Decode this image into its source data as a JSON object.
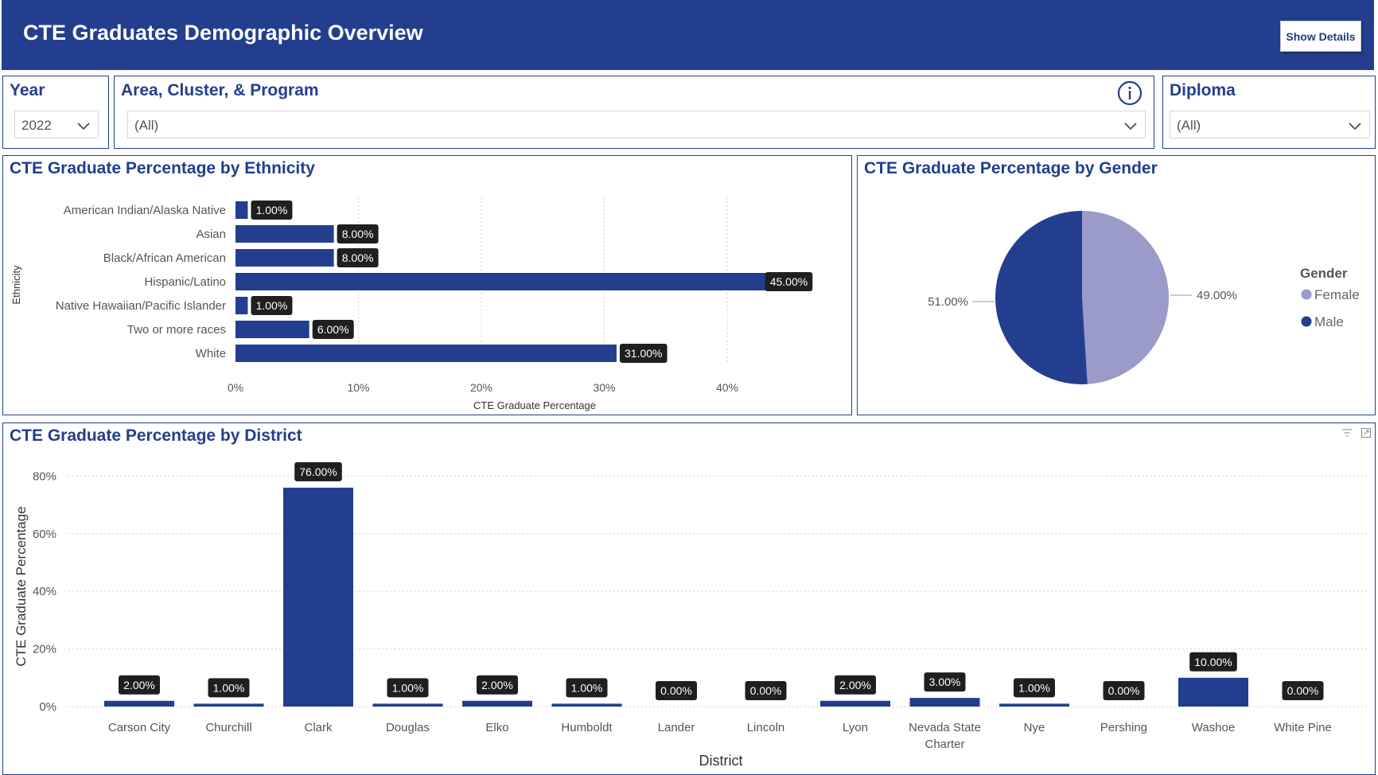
{
  "header": {
    "title": "CTE Graduates Demographic Overview",
    "show_details_label": "Show Details",
    "color": "#233e8e"
  },
  "filters": {
    "year": {
      "label": "Year",
      "value": "2022"
    },
    "program": {
      "label": "Area, Cluster, & Program",
      "value": "(All)",
      "info_icon": "info-icon"
    },
    "diploma": {
      "label": "Diploma",
      "value": "(All)"
    }
  },
  "colors": {
    "primary": "#233e8e",
    "female": "#9b9bc9",
    "label_bg": "#1f1f1f"
  },
  "chart_data": [
    {
      "type": "bar",
      "orientation": "horizontal",
      "title": "CTE Graduate Percentage by Ethnicity",
      "xlabel": "CTE Graduate Percentage",
      "ylabel": "Ethnicity",
      "categories": [
        "American Indian/Alaska Native",
        "Asian",
        "Black/African American",
        "Hispanic/Latino",
        "Native Hawaiian/Pacific Islander",
        "Two or more races",
        "White"
      ],
      "values": [
        1,
        8,
        8,
        45,
        1,
        6,
        31
      ],
      "data_labels": [
        "1.00%",
        "8.00%",
        "8.00%",
        "45.00%",
        "1.00%",
        "6.00%",
        "31.00%"
      ],
      "xticks": [
        "0%",
        "10%",
        "20%",
        "30%",
        "40%"
      ],
      "xlim": [
        0,
        49
      ],
      "grid": true
    },
    {
      "type": "pie",
      "title": "CTE Graduate Percentage by Gender",
      "legend_title": "Gender",
      "legend_position": "right",
      "slices": [
        {
          "name": "Female",
          "value": 49,
          "label": "49.00%",
          "color": "#9b9bc9"
        },
        {
          "name": "Male",
          "value": 51,
          "label": "51.00%",
          "color": "#233e8e"
        }
      ]
    },
    {
      "type": "bar",
      "orientation": "vertical",
      "title": "CTE Graduate Percentage by District",
      "xlabel": "District",
      "ylabel": "CTE Graduate Percentage",
      "categories": [
        "Carson City",
        "Churchill",
        "Clark",
        "Douglas",
        "Elko",
        "Humboldt",
        "Lander",
        "Lincoln",
        "Lyon",
        "Nevada State Charter",
        "Nye",
        "Pershing",
        "Washoe",
        "White Pine"
      ],
      "values": [
        2,
        1,
        76,
        1,
        2,
        1,
        0,
        0,
        2,
        3,
        1,
        0,
        10,
        0
      ],
      "data_labels": [
        "2.00%",
        "1.00%",
        "76.00%",
        "1.00%",
        "2.00%",
        "1.00%",
        "0.00%",
        "0.00%",
        "2.00%",
        "3.00%",
        "1.00%",
        "0.00%",
        "10.00%",
        "0.00%"
      ],
      "yticks": [
        "0%",
        "20%",
        "40%",
        "60%",
        "80%"
      ],
      "ylim": [
        0,
        80
      ],
      "grid": true
    }
  ]
}
